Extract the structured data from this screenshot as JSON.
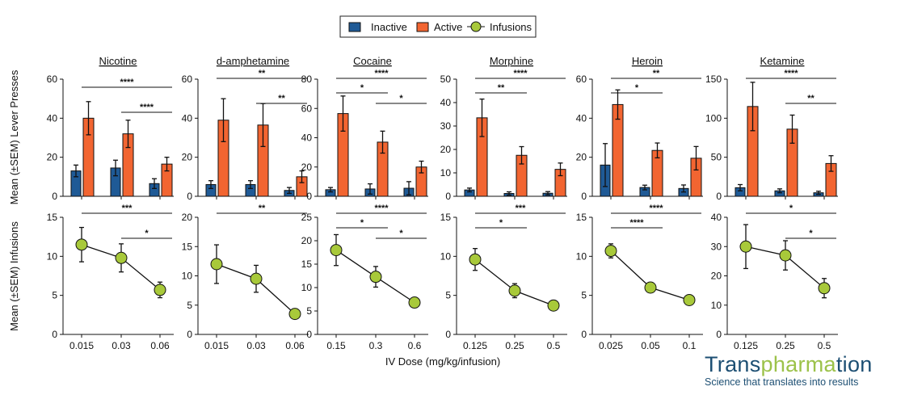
{
  "legend": {
    "items": [
      {
        "label": "Inactive",
        "color": "#1f5a96"
      },
      {
        "label": "Active",
        "color": "#f26531"
      },
      {
        "label": "Infusions",
        "color": "#a8c93a"
      }
    ]
  },
  "ylabel_top": "Mean (±SEM) Lever  Presses",
  "ylabel_bottom": "Mean (±SEM) Infusions",
  "xlabel": "IV Dose (mg/kg/infusion)",
  "logo": {
    "part1": "Trans",
    "part2": "pharma",
    "part3": "tion",
    "tagline": "Science that translates into results"
  },
  "chart_data": [
    {
      "type": "bar+line",
      "title": "Nicotine",
      "x": [
        "0.015",
        "0.03",
        "0.06"
      ],
      "inactive": [
        13,
        14.5,
        6.5
      ],
      "inactive_err": [
        3,
        4,
        2.5
      ],
      "active": [
        40,
        32,
        16.5
      ],
      "active_err": [
        8.5,
        7,
        3.5
      ],
      "infusions": [
        11.5,
        9.8,
        5.7
      ],
      "infusions_err": [
        2.2,
        1.8,
        1
      ],
      "ylim_top": [
        0,
        60
      ],
      "yticks_top": [
        0,
        20,
        40,
        60
      ],
      "ylim_bottom": [
        0,
        15
      ],
      "yticks_bottom": [
        0,
        5,
        10,
        15
      ],
      "sig_top": [
        {
          "from": 0,
          "to": 2,
          "label": "****"
        },
        {
          "from": 1,
          "to": 2,
          "label": "****"
        }
      ],
      "sig_bottom": [
        {
          "from": 0,
          "to": 2,
          "label": "***"
        },
        {
          "from": 1,
          "to": 2,
          "label": "*"
        }
      ]
    },
    {
      "type": "bar+line",
      "title": "d-amphetamine",
      "x": [
        "0.015",
        "0.03",
        "0.06"
      ],
      "inactive": [
        6,
        6,
        3
      ],
      "inactive_err": [
        2,
        2,
        1.5
      ],
      "active": [
        39,
        36.5,
        10
      ],
      "active_err": [
        11,
        11,
        3
      ],
      "infusions": [
        12,
        9.5,
        3.5
      ],
      "infusions_err": [
        3.3,
        2.3,
        0.8
      ],
      "ylim_top": [
        0,
        60
      ],
      "yticks_top": [
        0,
        20,
        40,
        60
      ],
      "ylim_bottom": [
        0,
        20
      ],
      "yticks_bottom": [
        0,
        5,
        10,
        15,
        20
      ],
      "sig_top": [
        {
          "from": 0,
          "to": 2,
          "label": "**"
        },
        {
          "from": 1,
          "to": 2,
          "label": "**"
        }
      ],
      "sig_bottom": [
        {
          "from": 0,
          "to": 2,
          "label": "**"
        }
      ]
    },
    {
      "type": "bar+line",
      "title": "Cocaine",
      "x": [
        "0.15",
        "0.3",
        "0.6"
      ],
      "inactive": [
        4.5,
        5,
        5.5
      ],
      "inactive_err": [
        1.5,
        3.5,
        4.5
      ],
      "active": [
        56.5,
        37,
        20
      ],
      "active_err": [
        12,
        7.5,
        4
      ],
      "infusions": [
        18,
        12.3,
        6.8
      ],
      "infusions_err": [
        3.3,
        2.2,
        1
      ],
      "ylim_top": [
        0,
        80
      ],
      "yticks_top": [
        0,
        20,
        40,
        60,
        80
      ],
      "ylim_bottom": [
        0,
        25
      ],
      "yticks_bottom": [
        0,
        5,
        10,
        15,
        20,
        25
      ],
      "sig_top": [
        {
          "from": 0,
          "to": 2,
          "label": "****"
        },
        {
          "from": 0,
          "to": 1,
          "label": "*"
        },
        {
          "from": 1,
          "to": 2,
          "label": "*"
        }
      ],
      "sig_bottom": [
        {
          "from": 0,
          "to": 2,
          "label": "****"
        },
        {
          "from": 0,
          "to": 1,
          "label": "*"
        },
        {
          "from": 1,
          "to": 2,
          "label": "*"
        }
      ]
    },
    {
      "type": "bar+line",
      "title": "Morphine",
      "x": [
        "0.125",
        "0.25",
        "0.5"
      ],
      "inactive": [
        2.7,
        1.2,
        1.3
      ],
      "inactive_err": [
        0.8,
        0.7,
        0.7
      ],
      "active": [
        33.5,
        17.5,
        11.5
      ],
      "active_err": [
        8,
        3.7,
        2.7
      ],
      "infusions": [
        9.6,
        5.6,
        3.7
      ],
      "infusions_err": [
        1.4,
        0.9,
        0.5
      ],
      "ylim_top": [
        0,
        50
      ],
      "yticks_top": [
        0,
        10,
        20,
        30,
        40,
        50
      ],
      "ylim_bottom": [
        0,
        15
      ],
      "yticks_bottom": [
        0,
        5,
        10,
        15
      ],
      "sig_top": [
        {
          "from": 0,
          "to": 2,
          "label": "****"
        },
        {
          "from": 0,
          "to": 1,
          "label": "**"
        }
      ],
      "sig_bottom": [
        {
          "from": 0,
          "to": 2,
          "label": "***"
        },
        {
          "from": 0,
          "to": 1,
          "label": "*"
        }
      ]
    },
    {
      "type": "bar+line",
      "title": "Heroin",
      "x": [
        "0.025",
        "0.05",
        "0.1"
      ],
      "inactive": [
        16,
        4.5,
        4
      ],
      "inactive_err": [
        11,
        1.2,
        1.8
      ],
      "active": [
        47,
        23.5,
        19.5
      ],
      "active_err": [
        7.5,
        3.8,
        6
      ],
      "infusions": [
        10.7,
        6,
        4.4
      ],
      "infusions_err": [
        0.9,
        0.3,
        0.3
      ],
      "ylim_top": [
        0,
        60
      ],
      "yticks_top": [
        0,
        20,
        40,
        60
      ],
      "ylim_bottom": [
        0,
        15
      ],
      "yticks_bottom": [
        0,
        5,
        10,
        15
      ],
      "sig_top": [
        {
          "from": 0,
          "to": 2,
          "label": "**"
        },
        {
          "from": 0,
          "to": 1,
          "label": "*"
        }
      ],
      "sig_bottom": [
        {
          "from": 0,
          "to": 2,
          "label": "****"
        },
        {
          "from": 0,
          "to": 1,
          "label": "****"
        }
      ]
    },
    {
      "type": "bar+line",
      "title": "Ketamine",
      "x": [
        "0.125",
        "0.25",
        "0.5"
      ],
      "inactive": [
        11,
        7,
        4.5
      ],
      "inactive_err": [
        4,
        2.5,
        2
      ],
      "active": [
        115,
        86,
        42
      ],
      "active_err": [
        31,
        18,
        10
      ],
      "infusions": [
        30,
        27,
        15.8
      ],
      "infusions_err": [
        7.5,
        5,
        3.3
      ],
      "ylim_top": [
        0,
        150
      ],
      "yticks_top": [
        0,
        50,
        100,
        150
      ],
      "ylim_bottom": [
        0,
        40
      ],
      "yticks_bottom": [
        0,
        10,
        20,
        30,
        40
      ],
      "sig_top": [
        {
          "from": 0,
          "to": 2,
          "label": "****"
        },
        {
          "from": 1,
          "to": 2,
          "label": "**"
        }
      ],
      "sig_bottom": [
        {
          "from": 0,
          "to": 2,
          "label": "*"
        },
        {
          "from": 1,
          "to": 2,
          "label": "*"
        }
      ]
    }
  ]
}
